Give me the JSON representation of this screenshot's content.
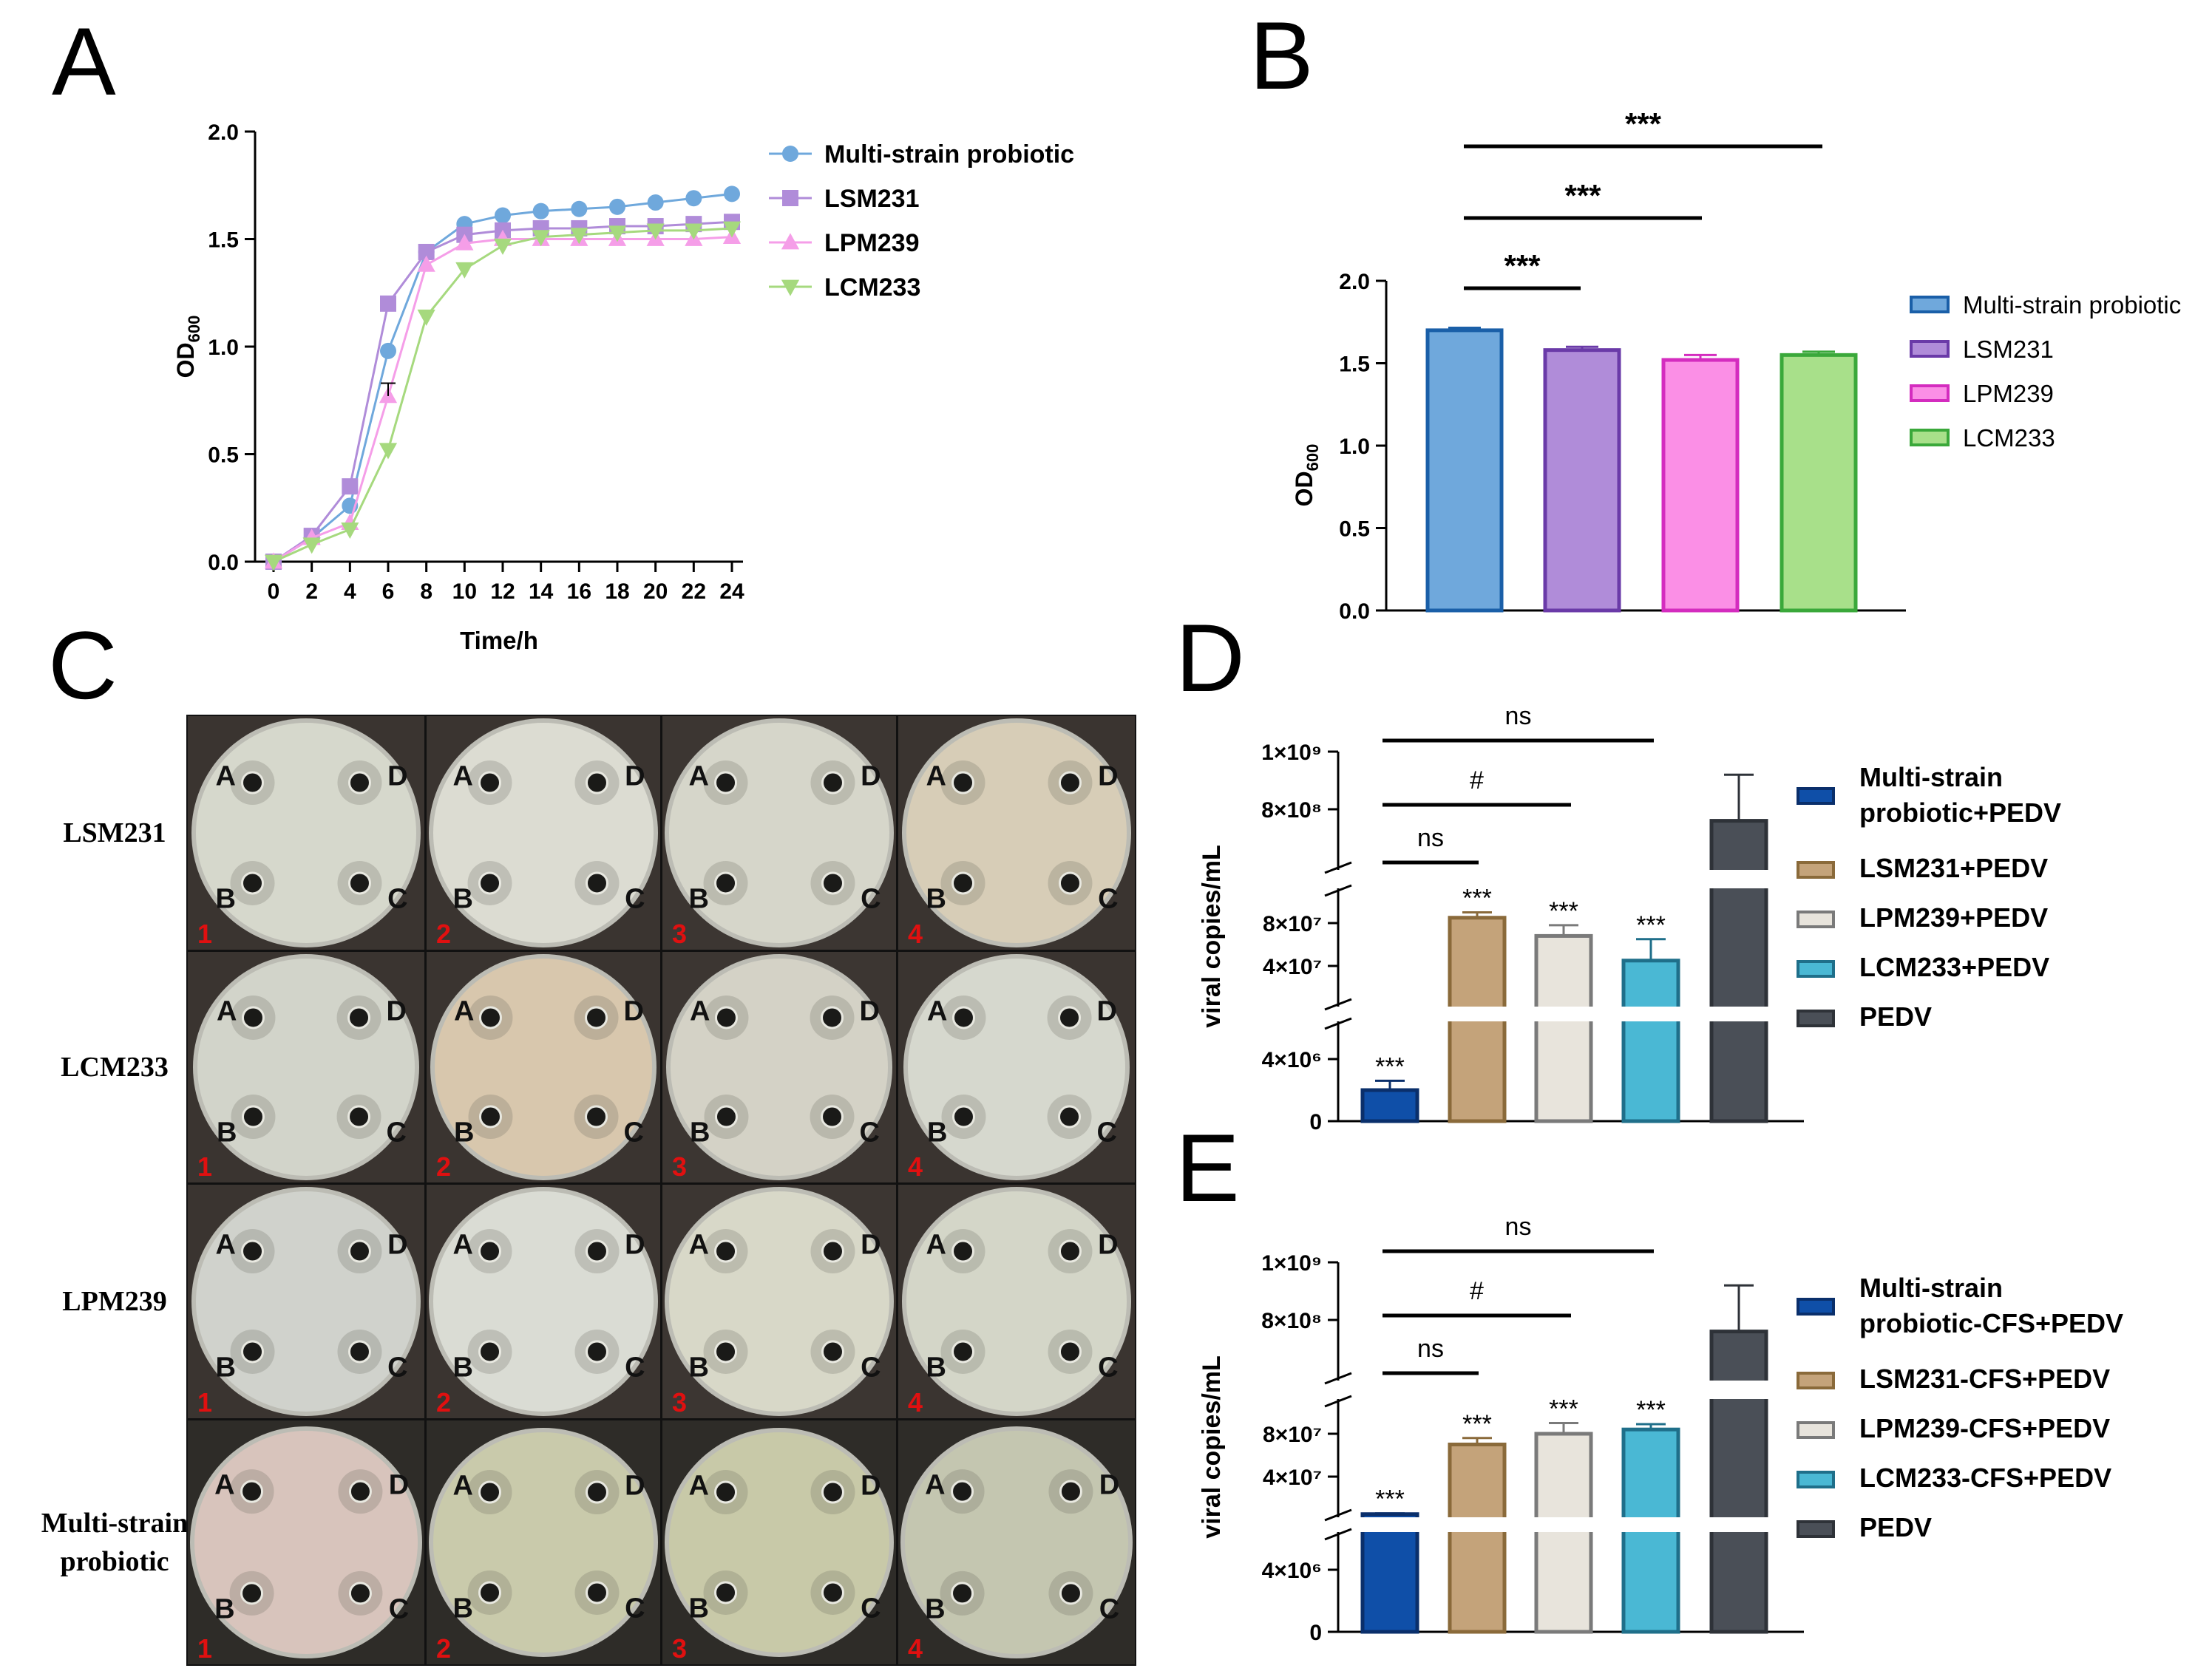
{
  "panel_letters": [
    "A",
    "B",
    "C",
    "D",
    "E"
  ],
  "chart_data": [
    {
      "panel": "A",
      "type": "line",
      "xlabel": "Time/h",
      "ylabel_main": "OD",
      "ylabel_sub": "600",
      "x": [
        0,
        2,
        4,
        6,
        8,
        10,
        12,
        14,
        16,
        18,
        20,
        22,
        24
      ],
      "xlim": [
        0,
        24
      ],
      "ylim": [
        0,
        2.0
      ],
      "yticks": [
        "0.0",
        "0.5",
        "1.0",
        "1.5",
        "2.0"
      ],
      "legend_position": "right",
      "series": [
        {
          "name": "Multi-strain probiotic",
          "color": "#6fa8dc",
          "marker": "circle",
          "values": [
            0.0,
            0.11,
            0.26,
            0.98,
            1.44,
            1.57,
            1.61,
            1.63,
            1.64,
            1.65,
            1.67,
            1.69,
            1.71
          ]
        },
        {
          "name": "LSM231",
          "color": "#b08cd9",
          "marker": "square",
          "values": [
            0.0,
            0.12,
            0.35,
            1.2,
            1.44,
            1.52,
            1.54,
            1.55,
            1.55,
            1.56,
            1.56,
            1.57,
            1.58
          ]
        },
        {
          "name": "LPM239",
          "color": "#f59ee8",
          "marker": "triangle-up",
          "values": [
            0.0,
            0.11,
            0.18,
            0.77,
            1.38,
            1.48,
            1.5,
            1.5,
            1.5,
            1.5,
            1.5,
            1.5,
            1.51
          ]
        },
        {
          "name": "LCM233",
          "color": "#a6d97e",
          "marker": "triangle-down",
          "values": [
            0.0,
            0.08,
            0.15,
            0.52,
            1.14,
            1.36,
            1.47,
            1.51,
            1.52,
            1.53,
            1.54,
            1.54,
            1.55
          ]
        }
      ]
    },
    {
      "panel": "B",
      "type": "bar",
      "ylabel_main": "OD",
      "ylabel_sub": "600",
      "ylim": [
        0,
        2.0
      ],
      "yticks": [
        "0.0",
        "0.5",
        "1.0",
        "1.5",
        "2.0"
      ],
      "categories": [
        "Multi-strain probiotic",
        "LSM231",
        "LPM239",
        "LCM233"
      ],
      "values": [
        1.7,
        1.58,
        1.52,
        1.55
      ],
      "errors": [
        0.015,
        0.02,
        0.03,
        0.02
      ],
      "fills": [
        "#6fa8dc",
        "#b08cd9",
        "#fb8fe6",
        "#a8e08a"
      ],
      "strokes": [
        "#1a5fa8",
        "#6a3aa8",
        "#d42cbf",
        "#3aa83a"
      ],
      "significance": [
        {
          "from": 0,
          "to": 1,
          "label": "***"
        },
        {
          "from": 0,
          "to": 2,
          "label": "***"
        },
        {
          "from": 0,
          "to": 3,
          "label": "***"
        }
      ],
      "legend_position": "right"
    },
    {
      "panel": "D",
      "type": "bar",
      "ylabel": "viral copies/mL",
      "axis_breaks": true,
      "ytick_labels": [
        "0",
        "4×10⁶",
        "4×10⁷",
        "8×10⁷",
        "8×10⁸",
        "1×10⁹"
      ],
      "categories": [
        "Multi-strain probiotic+PEDV",
        "LSM231+PEDV",
        "LPM239+PEDV",
        "LCM233+PEDV",
        "PEDV"
      ],
      "values": [
        2000000,
        85000000,
        68000000,
        45000000,
        760000000
      ],
      "errors": [
        600000,
        5000000,
        10000000,
        20000000,
        160000000
      ],
      "bar_labels": [
        "***",
        "***",
        "***",
        "***",
        ""
      ],
      "fills": [
        "#0f4fa8",
        "#c4a37a",
        "#e8e4dc",
        "#4ab8d4",
        "#4a4f57"
      ],
      "strokes": [
        "#0a2f6b",
        "#8a6a3a",
        "#7a7a7a",
        "#1f6f8a",
        "#2e3238"
      ],
      "significance": [
        {
          "from": 0,
          "to": 1,
          "label": "ns"
        },
        {
          "from": 0,
          "to": 2,
          "label": "#"
        },
        {
          "from": 0,
          "to": 3,
          "label": "ns"
        }
      ],
      "legend_labels": [
        "Multi-strain",
        "probiotic+PEDV",
        "LSM231+PEDV",
        "LPM239+PEDV",
        "LCM233+PEDV",
        "PEDV"
      ]
    },
    {
      "panel": "E",
      "type": "bar",
      "ylabel": "viral copies/mL",
      "axis_breaks": true,
      "ytick_labels": [
        "0",
        "4×10⁶",
        "4×10⁷",
        "8×10⁷",
        "8×10⁸",
        "1×10⁹"
      ],
      "categories": [
        "Multi-strain probiotic-CFS+PEDV",
        "LSM231-CFS+PEDV",
        "LPM239-CFS+PEDV",
        "LCM233-CFS+PEDV",
        "PEDV"
      ],
      "values": [
        5000000,
        70000000,
        80000000,
        84000000,
        760000000
      ],
      "errors": [
        700000,
        6000000,
        10000000,
        5000000,
        160000000
      ],
      "bar_labels": [
        "***",
        "***",
        "***",
        "***",
        ""
      ],
      "fills": [
        "#0f4fa8",
        "#c4a37a",
        "#e8e4dc",
        "#4ab8d4",
        "#4a4f57"
      ],
      "strokes": [
        "#0a2f6b",
        "#8a6a3a",
        "#7a7a7a",
        "#1f6f8a",
        "#2e3238"
      ],
      "significance": [
        {
          "from": 0,
          "to": 1,
          "label": "ns"
        },
        {
          "from": 0,
          "to": 2,
          "label": "#"
        },
        {
          "from": 0,
          "to": 3,
          "label": "ns"
        }
      ],
      "legend_labels": [
        "Multi-strain",
        "probiotic-CFS+PEDV",
        "LSM231-CFS+PEDV",
        "LPM239-CFS+PEDV",
        "LCM233-CFS+PEDV",
        "PEDV"
      ]
    }
  ],
  "plates": {
    "row_labels": [
      "LSM231",
      "LCM233",
      "LPM239",
      "Multi-strain\nprobiotic"
    ],
    "row_label_lines": [
      [
        "LSM231"
      ],
      [
        "LCM233"
      ],
      [
        "LPM239"
      ],
      [
        "Multi-strain",
        "probiotic"
      ]
    ],
    "column_numbers": [
      "1",
      "2",
      "3",
      "4"
    ],
    "well_letters": [
      "A",
      "D",
      "B",
      "C"
    ],
    "background_colors": [
      [
        "#3a3430",
        "#3a3430",
        "#3c3632",
        "#3a3430"
      ],
      [
        "#3a3430",
        "#3a3430",
        "#3c3632",
        "#3a3430"
      ],
      [
        "#3a3430",
        "#3a3430",
        "#3c3632",
        "#3a3430"
      ],
      [
        "#2e2c28",
        "#2e2c28",
        "#2e2c28",
        "#2e2c28"
      ]
    ],
    "agar_colors": [
      [
        "#d6d8cc",
        "#dcdcd2",
        "#d6d6ca",
        "#d7cdb7"
      ],
      [
        "#d2d4ca",
        "#d8c7ad",
        "#d4d2c6",
        "#d6d8ce"
      ],
      [
        "#d0d2cc",
        "#dadcd4",
        "#d8d8c8",
        "#d4d6c8"
      ],
      [
        "#d8c4bc",
        "#c9caab",
        "#c8c9a8",
        "#c4c6b0"
      ]
    ],
    "number_color": "#e01010"
  }
}
